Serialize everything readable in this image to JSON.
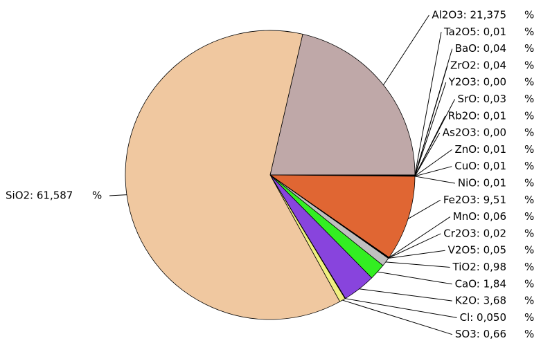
{
  "chart_data": {
    "type": "pie",
    "unit": "%",
    "value_labels": [
      "Al2O3: 21,375",
      "Ta2O5: 0,01",
      "BaO: 0,04",
      "ZrO2: 0,04",
      "Y2O3: 0,00",
      "SrO: 0,03",
      "Rb2O: 0,01",
      "As2O3: 0,00",
      "ZnO: 0,01",
      "CuO: 0,01",
      "NiO: 0,01",
      "Fe2O3: 9,51",
      "MnO: 0,06",
      "Cr2O3: 0,02",
      "V2O5: 0,05",
      "TiO2: 0,98",
      "CaO: 1,84",
      "K2O: 3,68",
      "Cl: 0,050",
      "SO3: 0,66",
      "SiO2: 61,587"
    ],
    "values": [
      21.375,
      0.01,
      0.04,
      0.04,
      0.0,
      0.03,
      0.01,
      0.0,
      0.01,
      0.01,
      0.01,
      9.51,
      0.06,
      0.02,
      0.05,
      0.98,
      1.84,
      3.68,
      0.05,
      0.66,
      61.587
    ],
    "colors": [
      "#bfa8a8",
      "#404040",
      "#303030",
      "#505050",
      "#202020",
      "#404040",
      "#303030",
      "#202020",
      "#404040",
      "#303030",
      "#404040",
      "#e06633",
      "#303030",
      "#505050",
      "#404040",
      "#c0c0c0",
      "#33ee22",
      "#8844dd",
      "#ffff33",
      "#f0f080",
      "#f0c8a0"
    ]
  }
}
